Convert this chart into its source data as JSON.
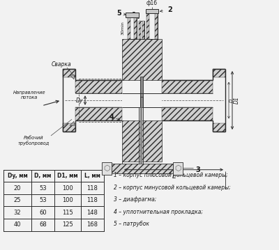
{
  "bg_color": "#f2f2f2",
  "line_color": "#2a2a2a",
  "hatch_color": "#555555",
  "text_color": "#1a1a1a",
  "table_headers": [
    "Dy, мм",
    "D, мм",
    "D1, мм",
    "L, мм"
  ],
  "table_rows": [
    [
      "20",
      "53",
      "100",
      "118"
    ],
    [
      "25",
      "53",
      "100",
      "118"
    ],
    [
      "32",
      "60",
      "115",
      "148"
    ],
    [
      "40",
      "68",
      "125",
      "168"
    ]
  ],
  "legend_items": [
    "1 – корпус плюсовой кольцевой камеры;",
    "2 – корпус минусовой кольцевой камеры;",
    "3 – диафрагма;",
    "4 – уплотнительная прокладка;",
    "5 – патрубок"
  ]
}
